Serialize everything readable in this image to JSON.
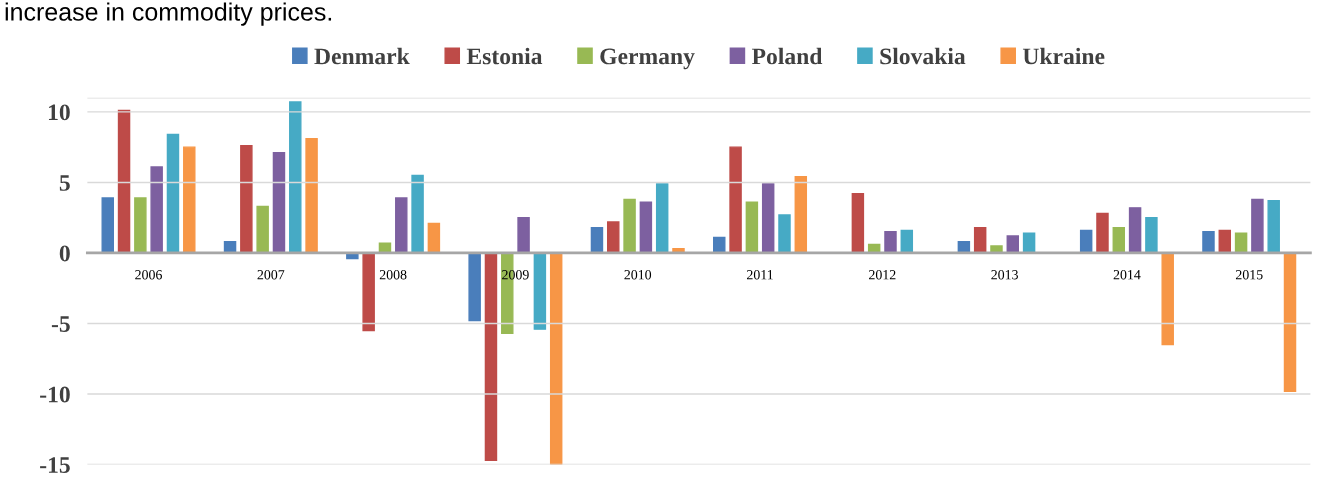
{
  "chart_data": {
    "type": "bar",
    "annotations": [
      "increase in commodity prices."
    ],
    "categories": [
      "2006",
      "2007",
      "2008",
      "2009",
      "2010",
      "2011",
      "2012",
      "2013",
      "2014",
      "2015"
    ],
    "series": [
      {
        "name": "Denmark",
        "color": "#4a7ebb",
        "values": [
          3.9,
          0.8,
          -0.4,
          -4.8,
          1.8,
          1.1,
          0,
          0.8,
          1.6,
          1.5
        ]
      },
      {
        "name": "Estonia",
        "color": "#be4b48",
        "values": [
          10.1,
          7.6,
          -5.5,
          -14.7,
          2.2,
          7.5,
          4.2,
          1.8,
          2.8,
          1.6
        ]
      },
      {
        "name": "Germany",
        "color": "#98b954",
        "values": [
          3.9,
          3.3,
          0.7,
          -5.7,
          3.8,
          3.6,
          0.6,
          0.5,
          1.8,
          1.4
        ]
      },
      {
        "name": "Poland",
        "color": "#7d60a0",
        "values": [
          6.1,
          7.1,
          3.9,
          2.5,
          3.6,
          4.9,
          1.5,
          1.2,
          3.2,
          3.8
        ]
      },
      {
        "name": "Slovakia",
        "color": "#46aac5",
        "values": [
          8.4,
          10.7,
          5.5,
          -5.4,
          4.9,
          2.7,
          1.6,
          1.4,
          2.5,
          3.7
        ]
      },
      {
        "name": "Ukraine",
        "color": "#f79646",
        "values": [
          7.5,
          8.1,
          2.1,
          -15,
          0.3,
          5.4,
          0,
          0,
          -6.5,
          -9.8
        ]
      }
    ],
    "ylim": [
      -15,
      11
    ],
    "yticks": [
      -15,
      -10,
      -5,
      0,
      5,
      10,
      {
        "value": 11,
        "label": null
      }
    ],
    "grid": "y",
    "legend": "top"
  }
}
